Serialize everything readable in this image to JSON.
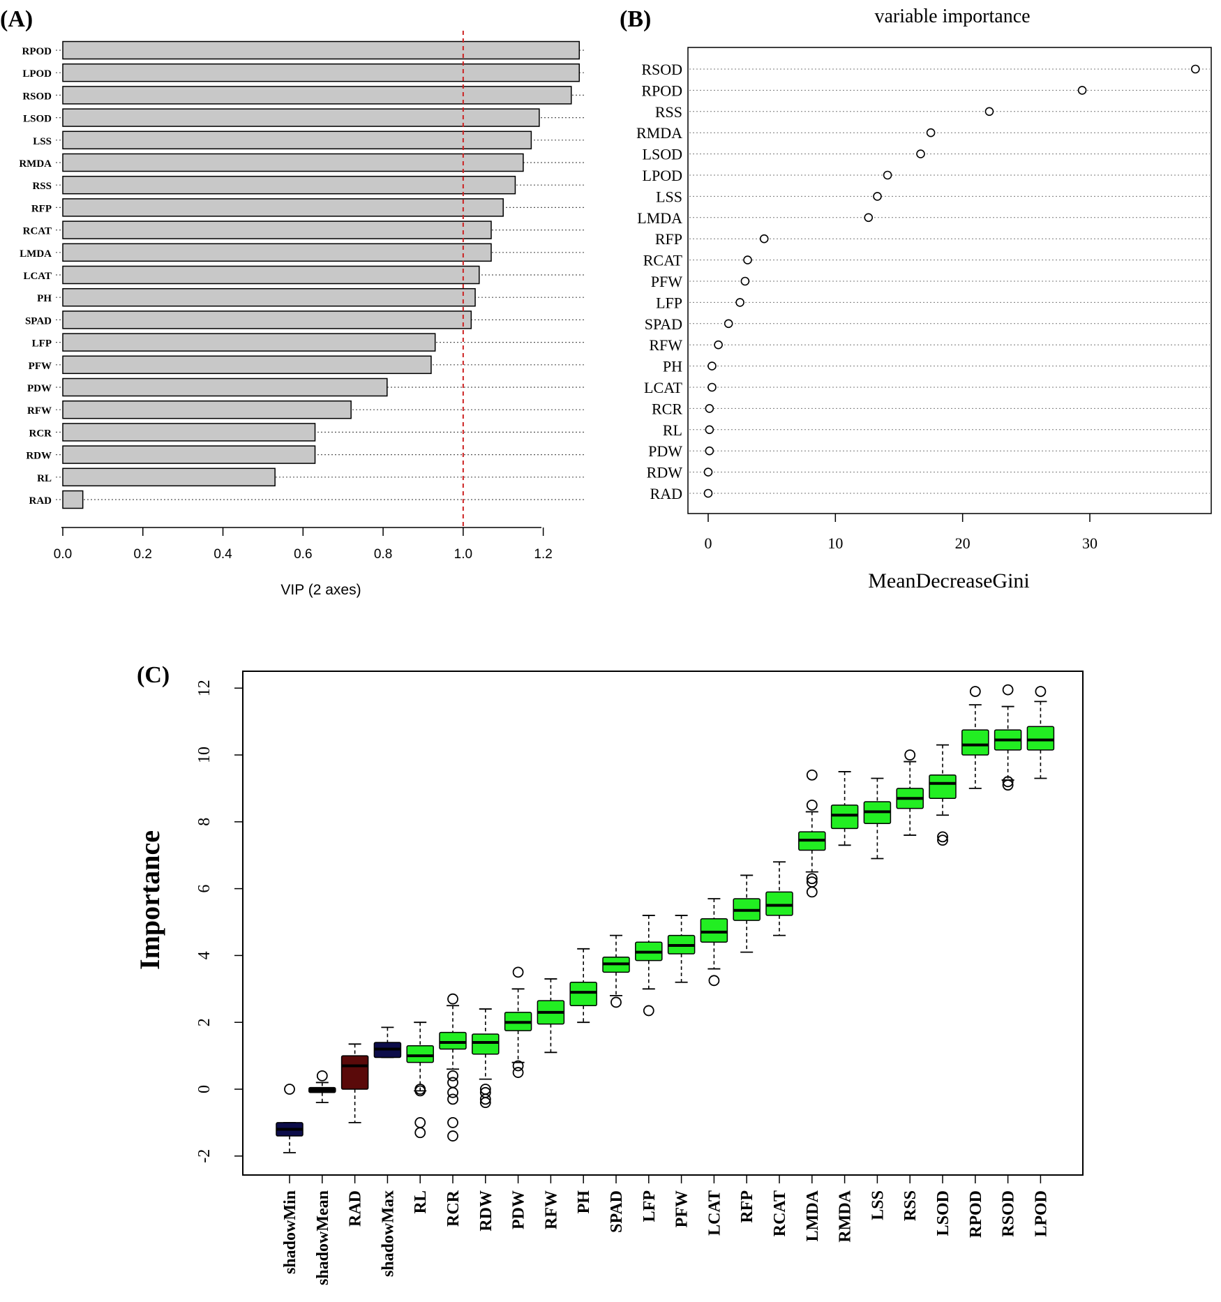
{
  "panels": {
    "a": {
      "label": "(A)"
    },
    "b": {
      "label": "(B)"
    },
    "c": {
      "label": "(C)"
    }
  },
  "chart_data": [
    {
      "type": "bar",
      "orientation": "horizontal",
      "categories": [
        "RPOD",
        "LPOD",
        "RSOD",
        "LSOD",
        "LSS",
        "RMDA",
        "RSS",
        "RFP",
        "RCAT",
        "LMDA",
        "LCAT",
        "PH",
        "SPAD",
        "LFP",
        "PFW",
        "PDW",
        "RFW",
        "RCR",
        "RDW",
        "RL",
        "RAD"
      ],
      "values": [
        1.29,
        1.29,
        1.27,
        1.19,
        1.17,
        1.15,
        1.13,
        1.1,
        1.07,
        1.07,
        1.04,
        1.03,
        1.02,
        0.93,
        0.92,
        0.81,
        0.72,
        0.63,
        0.63,
        0.53,
        0.05
      ],
      "xlabel": "VIP (2 axes)",
      "xticks": [
        "0.0",
        "0.2",
        "0.4",
        "0.6",
        "0.8",
        "1.0",
        "1.2"
      ],
      "xlim": [
        0,
        1.3
      ],
      "threshold": 1.0,
      "bar_color": "#c8c8c8",
      "threshold_color": "#cc2222"
    },
    {
      "type": "scatter",
      "subtype": "dotchart",
      "title": "variable importance",
      "categories": [
        "RSOD",
        "RPOD",
        "RSS",
        "RMDA",
        "LSOD",
        "LPOD",
        "LSS",
        "LMDA",
        "RFP",
        "RCAT",
        "PFW",
        "LFP",
        "SPAD",
        "RFW",
        "PH",
        "LCAT",
        "RCR",
        "RL",
        "PDW",
        "RDW",
        "RAD"
      ],
      "values": [
        38.3,
        29.4,
        22.1,
        17.5,
        16.7,
        14.1,
        13.3,
        12.6,
        4.4,
        3.1,
        2.9,
        2.5,
        1.6,
        0.8,
        0.3,
        0.3,
        0.1,
        0.1,
        0.1,
        0.0,
        0.0
      ],
      "xlabel": "MeanDecreaseGini",
      "xticks": [
        "0",
        "10",
        "20",
        "30"
      ],
      "xlim": [
        -1.5,
        40
      ]
    },
    {
      "type": "box",
      "ylabel": "Importance",
      "yticks": [
        "-2",
        "0",
        "2",
        "4",
        "6",
        "8",
        "10",
        "12"
      ],
      "ylim": [
        -2.6,
        12.5
      ],
      "colors": {
        "shadow": "#0d0d4a",
        "rejected": "#5a0a0a",
        "confirmed": "#22ee22"
      },
      "boxes": [
        {
          "name": "shadowMin",
          "group": "shadow",
          "min": -1.9,
          "q1": -1.4,
          "median": -1.2,
          "q3": -1.0,
          "max": -1.0,
          "outliers": [
            0.0
          ]
        },
        {
          "name": "shadowMean",
          "group": "black",
          "min": -0.4,
          "q1": -0.1,
          "median": 0.0,
          "q3": 0.05,
          "max": 0.2,
          "outliers": [
            0.4
          ]
        },
        {
          "name": "RAD",
          "group": "rejected",
          "min": -1.0,
          "q1": 0.0,
          "median": 0.7,
          "q3": 1.0,
          "max": 1.35,
          "outliers": []
        },
        {
          "name": "shadowMax",
          "group": "shadow",
          "min": 0.95,
          "q1": 0.95,
          "median": 1.2,
          "q3": 1.4,
          "max": 1.85,
          "outliers": []
        },
        {
          "name": "RL",
          "group": "confirmed",
          "min": -0.05,
          "q1": 0.8,
          "median": 1.0,
          "q3": 1.3,
          "max": 2.0,
          "outliers": [
            0.0,
            -0.05,
            -1.0,
            -1.3
          ]
        },
        {
          "name": "RCR",
          "group": "confirmed",
          "min": 0.6,
          "q1": 1.2,
          "median": 1.4,
          "q3": 1.7,
          "max": 2.5,
          "outliers": [
            2.7,
            0.4,
            0.2,
            -0.1,
            -0.3,
            -1.0,
            -1.4
          ]
        },
        {
          "name": "RDW",
          "group": "confirmed",
          "min": 0.3,
          "q1": 1.05,
          "median": 1.4,
          "q3": 1.65,
          "max": 2.4,
          "outliers": [
            0.0,
            -0.1,
            -0.3,
            -0.4
          ]
        },
        {
          "name": "PDW",
          "group": "confirmed",
          "min": 0.8,
          "q1": 1.75,
          "median": 2.0,
          "q3": 2.3,
          "max": 3.0,
          "outliers": [
            3.5,
            0.7,
            0.5
          ]
        },
        {
          "name": "RFW",
          "group": "confirmed",
          "min": 1.1,
          "q1": 1.95,
          "median": 2.3,
          "q3": 2.65,
          "max": 3.3,
          "outliers": []
        },
        {
          "name": "PH",
          "group": "confirmed",
          "min": 2.0,
          "q1": 2.5,
          "median": 2.9,
          "q3": 3.2,
          "max": 4.2,
          "outliers": []
        },
        {
          "name": "SPAD",
          "group": "confirmed",
          "min": 2.8,
          "q1": 3.5,
          "median": 3.75,
          "q3": 3.95,
          "max": 4.6,
          "outliers": [
            2.6
          ]
        },
        {
          "name": "LFP",
          "group": "confirmed",
          "min": 3.0,
          "q1": 3.85,
          "median": 4.1,
          "q3": 4.4,
          "max": 5.2,
          "outliers": [
            2.35
          ]
        },
        {
          "name": "PFW",
          "group": "confirmed",
          "min": 3.2,
          "q1": 4.05,
          "median": 4.3,
          "q3": 4.6,
          "max": 5.2,
          "outliers": []
        },
        {
          "name": "LCAT",
          "group": "confirmed",
          "min": 3.6,
          "q1": 4.4,
          "median": 4.7,
          "q3": 5.1,
          "max": 5.7,
          "outliers": [
            3.25
          ]
        },
        {
          "name": "RFP",
          "group": "confirmed",
          "min": 4.1,
          "q1": 5.05,
          "median": 5.35,
          "q3": 5.7,
          "max": 6.4,
          "outliers": []
        },
        {
          "name": "RCAT",
          "group": "confirmed",
          "min": 4.6,
          "q1": 5.2,
          "median": 5.5,
          "q3": 5.9,
          "max": 6.8,
          "outliers": []
        },
        {
          "name": "LMDA",
          "group": "confirmed",
          "min": 6.5,
          "q1": 7.15,
          "median": 7.45,
          "q3": 7.7,
          "max": 8.3,
          "outliers": [
            9.4,
            8.5,
            6.3,
            6.2,
            5.9
          ]
        },
        {
          "name": "RMDA",
          "group": "confirmed",
          "min": 7.3,
          "q1": 7.8,
          "median": 8.2,
          "q3": 8.5,
          "max": 9.5,
          "outliers": []
        },
        {
          "name": "LSS",
          "group": "confirmed",
          "min": 6.9,
          "q1": 7.95,
          "median": 8.3,
          "q3": 8.6,
          "max": 9.3,
          "outliers": []
        },
        {
          "name": "RSS",
          "group": "confirmed",
          "min": 7.6,
          "q1": 8.4,
          "median": 8.7,
          "q3": 9.0,
          "max": 9.8,
          "outliers": [
            10.0
          ]
        },
        {
          "name": "LSOD",
          "group": "confirmed",
          "min": 8.2,
          "q1": 8.7,
          "median": 9.15,
          "q3": 9.4,
          "max": 10.3,
          "outliers": [
            7.55,
            7.45
          ]
        },
        {
          "name": "RPOD",
          "group": "confirmed",
          "min": 9.0,
          "q1": 10.0,
          "median": 10.3,
          "q3": 10.75,
          "max": 11.5,
          "outliers": [
            11.9
          ]
        },
        {
          "name": "RSOD",
          "group": "confirmed",
          "min": 9.25,
          "q1": 10.15,
          "median": 10.45,
          "q3": 10.75,
          "max": 11.45,
          "outliers": [
            11.95,
            9.2,
            9.1
          ]
        },
        {
          "name": "LPOD",
          "group": "confirmed",
          "min": 9.3,
          "q1": 10.15,
          "median": 10.45,
          "q3": 10.85,
          "max": 11.6,
          "outliers": [
            11.9
          ]
        }
      ]
    }
  ]
}
